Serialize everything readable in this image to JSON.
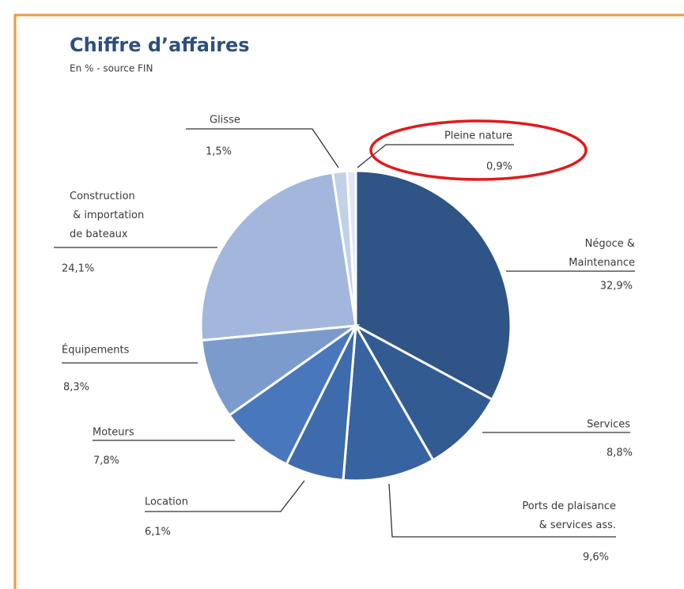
{
  "chart_data": {
    "type": "pie",
    "title": "Chiffre d’affaires",
    "subtitle": "En % - source FIN",
    "categories": [
      "Négoce &\nMaintenance",
      "Services",
      "Ports de plaisance\n& services ass.",
      "Location",
      "Moteurs",
      "Équipements",
      "Construction\n & importation\nde bateaux",
      "Glisse",
      "Pleine nature"
    ],
    "values": [
      32.9,
      8.8,
      9.6,
      6.1,
      7.8,
      8.3,
      24.1,
      1.5,
      0.9
    ],
    "value_labels": [
      "32,9%",
      "8,8%",
      "9,6%",
      "6,1%",
      "7,8%",
      "8,3%",
      "24,1%",
      "1,5%",
      "0,9%"
    ],
    "colors": [
      "#2f5486",
      "#325b91",
      "#3763a0",
      "#3d6bab",
      "#4877bb",
      "#7b9bcd",
      "#a3b7dc",
      "#c3d0ea",
      "#dfe6f3"
    ]
  }
}
